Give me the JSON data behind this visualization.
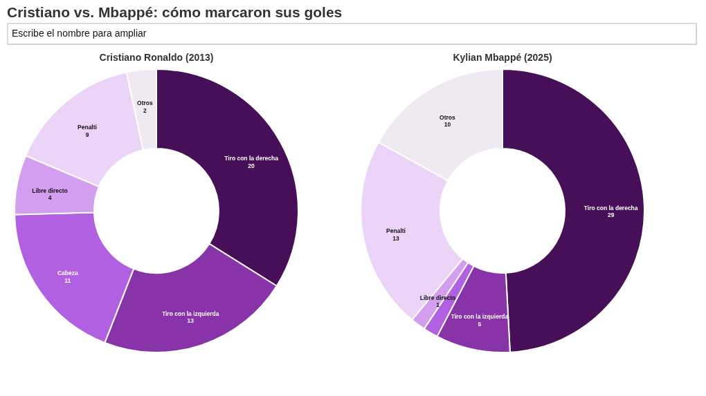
{
  "chart_data": [
    {
      "type": "donut",
      "title": "Cristiano vs. Mbappé: cómo marcaron sus goles",
      "subtitle": "Cristiano Ronaldo (2013)",
      "annotations": [
        "Escribe el nombre para ampliar"
      ],
      "categories": [
        "Tiro con la derecha",
        "Tiro con la izquierda",
        "Cabeza",
        "Libre directo",
        "Penalti",
        "Otros"
      ],
      "values": [
        20,
        13,
        11,
        4,
        9,
        2
      ],
      "colors": [
        "#470f57",
        "#8833a8",
        "#b060e0",
        "#d49ef0",
        "#ebd4f8",
        "#efe9f2"
      ],
      "data_labels": true
    },
    {
      "type": "donut",
      "subtitle": "Kylian Mbappé (2025)",
      "categories": [
        "Tiro con la derecha",
        "Tiro con la izquierda",
        null,
        "Libre directo",
        "Penalti",
        "Otros"
      ],
      "values": [
        29,
        5,
        1,
        1,
        13,
        10
      ],
      "colors": [
        "#470f57",
        "#8833a8",
        "#b060e0",
        "#d49ef0",
        "#ebd4f8",
        "#efe9f2"
      ],
      "value_labels": [
        "29",
        "5",
        null,
        "1",
        "13",
        "10"
      ]
    }
  ]
}
